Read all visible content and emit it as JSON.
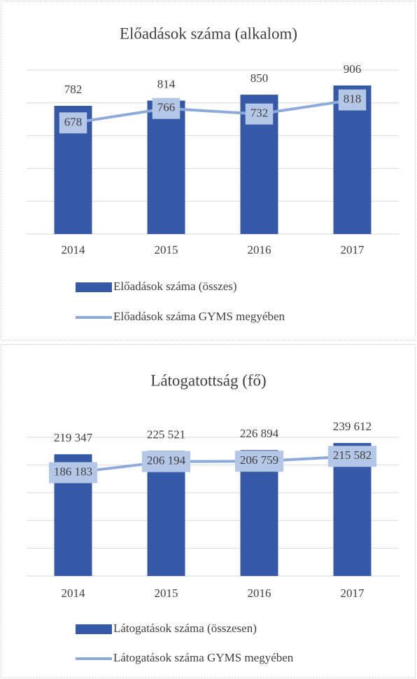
{
  "chart_data": [
    {
      "type": "bar",
      "title": "Előadások száma (alkalom)",
      "categories": [
        "2014",
        "2015",
        "2016",
        "2017"
      ],
      "series": [
        {
          "name": "Előadások száma (összes)",
          "type": "bar",
          "color": "#3559a6",
          "values": [
            782,
            814,
            850,
            906
          ]
        },
        {
          "name": "Előadások száma GYMS megyében",
          "type": "line",
          "color": "#8eaadb",
          "values": [
            678,
            766,
            732,
            818
          ]
        }
      ],
      "ylim": [
        0,
        1000
      ],
      "yticks": [
        0,
        200,
        400,
        600,
        800,
        1000
      ],
      "grid": true
    },
    {
      "type": "bar",
      "title": "Látogatottság (fő)",
      "categories": [
        "2014",
        "2015",
        "2016",
        "2017"
      ],
      "series": [
        {
          "name": "Látogatások száma (összesen)",
          "type": "bar",
          "color": "#3559a6",
          "values": [
            219347,
            225521,
            226894,
            239612
          ],
          "value_labels": [
            "219 347",
            "225 521",
            "226 894",
            "239 612"
          ]
        },
        {
          "name": "Látogatások száma GYMS megyében",
          "type": "line",
          "color": "#8eaadb",
          "values": [
            186183,
            206194,
            206759,
            215582
          ],
          "value_labels": [
            "186 183",
            "206 194",
            "206 759",
            "215 582"
          ]
        }
      ],
      "ylim": [
        0,
        250000
      ],
      "yticks": [
        0,
        50000,
        100000,
        150000,
        200000,
        250000
      ],
      "grid": true
    }
  ]
}
